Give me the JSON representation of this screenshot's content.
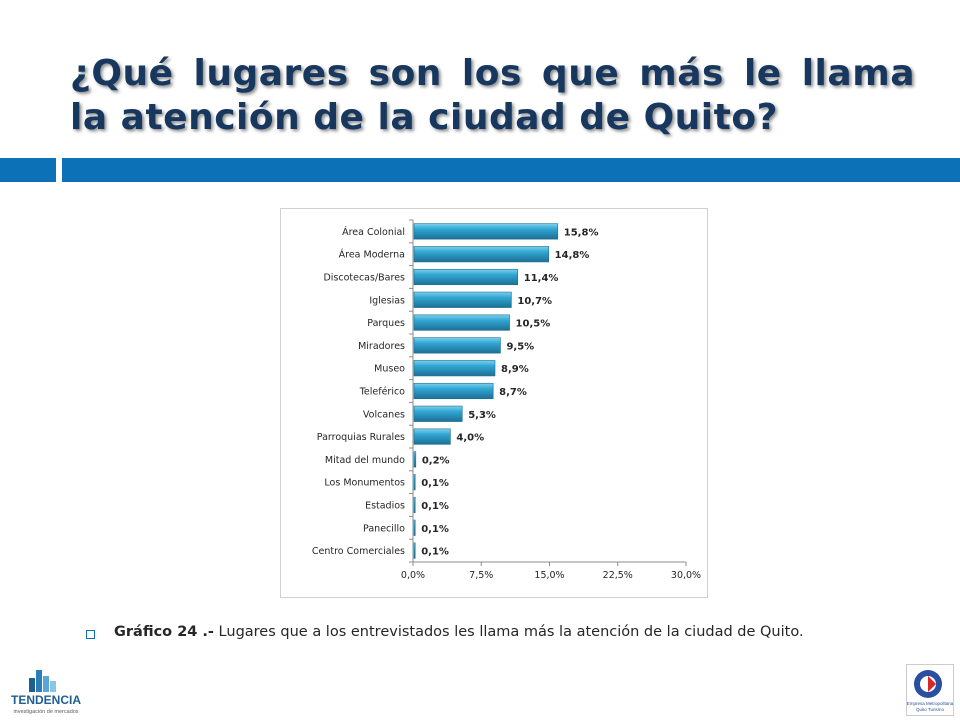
{
  "slide": {
    "title": "¿Qué lugares son los que más le llama la atención de la ciudad de Quito?",
    "caption_bold": "Gráfico 24 .-",
    "caption_text": " Lugares que a los entrevistados les llama más la atención de la ciudad de Quito.",
    "logo_left_name": "TENDENCIA",
    "logo_left_sub": "investigación de mercados",
    "logo_right_text": "Empresa Metropolitana Quito Turismo"
  },
  "colors": {
    "title": "#17375e",
    "accent_bar": "#0d71b8",
    "bar_fill": "#31a7d3",
    "bar_dark": "#1d6f95",
    "bar_light": "#7fd0ec"
  },
  "chart_data": {
    "type": "bar",
    "orientation": "horizontal",
    "categories": [
      "Área Colonial",
      "Área Moderna",
      "Discotecas/Bares",
      "Iglesias",
      "Parques",
      "Miradores",
      "Museo",
      "Teleférico",
      "Volcanes",
      "Parroquias Rurales",
      "Mitad del mundo",
      "Los Monumentos",
      "Estadios",
      "Panecillo",
      "Centro Comerciales"
    ],
    "values": [
      15.8,
      14.8,
      11.4,
      10.7,
      10.5,
      9.5,
      8.9,
      8.7,
      5.3,
      4.0,
      0.2,
      0.1,
      0.1,
      0.1,
      0.1
    ],
    "data_labels": [
      "15,8%",
      "14,8%",
      "11,4%",
      "10,7%",
      "10,5%",
      "9,5%",
      "8,9%",
      "8,7%",
      "5,3%",
      "4,0%",
      "0,2%",
      "0,1%",
      "0,1%",
      "0,1%",
      "0,1%"
    ],
    "xlim": [
      0,
      30
    ],
    "x_ticks": [
      0,
      7.5,
      15,
      22.5,
      30
    ],
    "x_tick_labels": [
      "0,0%",
      "7,5%",
      "15,0%",
      "22,5%",
      "30,0%"
    ],
    "grid": false,
    "legend": "none"
  }
}
